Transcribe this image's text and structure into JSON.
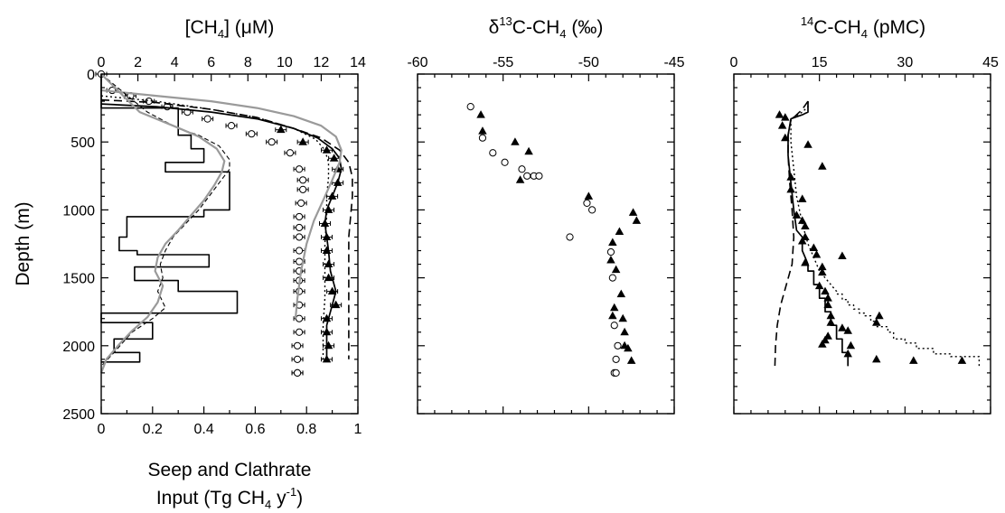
{
  "chart_data": [
    {
      "type": "line",
      "title_parts": {
        "pre": "[CH",
        "sub": "4",
        "post": "] (μM)"
      },
      "ylabel": "Depth (m)",
      "ylim": [
        0,
        2500
      ],
      "yticks": [
        "0",
        "500",
        "1000",
        "1500",
        "2000",
        "2500"
      ],
      "x_top": {
        "range": [
          0,
          14
        ],
        "ticks": [
          "0",
          "2",
          "4",
          "6",
          "8",
          "10",
          "12",
          "14"
        ]
      },
      "x_bottom": {
        "range": [
          0,
          1
        ],
        "ticks": [
          "0",
          "0.2",
          "0.4",
          "0.6",
          "0.8",
          "1"
        ],
        "label_line1": "Seep and Clathrate",
        "label_line2": {
          "pre": "Input (Tg CH",
          "sub": "4",
          "mid": " y",
          "sup": "-1",
          "post": ")"
        }
      },
      "series": [
        {
          "style": "triangles-with-errorbars",
          "axis": "top",
          "x": [
            9.8,
            11,
            12.3,
            12.7,
            12.9,
            12.9,
            12.6,
            12.4,
            12.2,
            12.3,
            12.3,
            12.4,
            12.4,
            12.6,
            12.8,
            12.3,
            12.3,
            12.4,
            12.3
          ],
          "y": [
            410,
            500,
            560,
            620,
            700,
            800,
            900,
            1000,
            1100,
            1200,
            1300,
            1400,
            1500,
            1600,
            1700,
            1800,
            1900,
            2000,
            2100
          ]
        },
        {
          "style": "circles-with-errorbars",
          "axis": "top",
          "x": [
            0,
            0.6,
            1.6,
            2.6,
            3.6,
            4.7,
            5.8,
            7.1,
            8.2,
            9.3,
            10.3,
            10.8,
            11,
            11,
            10.9,
            10.8,
            10.8,
            10.8,
            10.8,
            10.8,
            10.8,
            10.8,
            10.8,
            10.8,
            10.8,
            10.8,
            10.7,
            10.7,
            10.7,
            10.7
          ],
          "y": [
            0,
            120,
            160,
            200,
            240,
            280,
            330,
            380,
            440,
            500,
            580,
            700,
            780,
            850,
            950,
            1050,
            1130,
            1200,
            1300,
            1380,
            1450,
            1520,
            1600,
            1700,
            1800,
            1900,
            2000,
            2100,
            2200,
            2200
          ]
        },
        {
          "style": "solid-black",
          "axis": "top",
          "x": [
            0,
            3,
            6,
            8.5,
            10.5,
            11.8,
            12.6,
            13,
            13.1,
            12.9,
            12.6,
            12.3,
            12.2,
            12.3,
            12.4,
            12.5,
            12.8,
            12.5,
            12.3,
            12.3,
            12.3
          ],
          "y": [
            220,
            240,
            280,
            330,
            400,
            470,
            550,
            620,
            700,
            800,
            900,
            1000,
            1100,
            1200,
            1300,
            1450,
            1600,
            1750,
            1850,
            1950,
            2100
          ]
        },
        {
          "style": "dashed-black",
          "axis": "top",
          "x": [
            0,
            3,
            6,
            8.5,
            10.5,
            12,
            13,
            13.5,
            13.7,
            13.7,
            13.6,
            13.5,
            13.5,
            13.5,
            13.5,
            13.5,
            13.5
          ],
          "y": [
            190,
            210,
            260,
            320,
            400,
            470,
            560,
            650,
            760,
            900,
            1050,
            1200,
            1400,
            1600,
            1800,
            2000,
            2100
          ]
        },
        {
          "style": "dotted-black",
          "axis": "top",
          "x": [
            0,
            3,
            6,
            8.5,
            10.5,
            11.7,
            12.2,
            12.4,
            12.4,
            12.3,
            12.3,
            12.2,
            12.2,
            12.2,
            12.1,
            12.1
          ],
          "y": [
            160,
            200,
            260,
            320,
            400,
            480,
            560,
            650,
            760,
            900,
            1050,
            1250,
            1450,
            1650,
            1850,
            2100
          ]
        },
        {
          "style": "gray-solid",
          "axis": "top",
          "x": [
            0,
            3,
            6,
            8.5,
            10.5,
            12,
            12.8,
            13.1,
            13,
            12.6,
            12.1,
            11.6,
            11.2,
            10.9,
            10.7,
            10.6
          ],
          "y": [
            120,
            160,
            200,
            250,
            310,
            380,
            460,
            560,
            650,
            780,
            930,
            1080,
            1250,
            1450,
            1650,
            1800
          ]
        },
        {
          "style": "histogram",
          "axis": "bottom",
          "x": [
            0,
            0,
            0.3,
            0.3,
            0.35,
            0.35,
            0.4,
            0.4,
            0.25,
            0.25,
            0.5,
            0.5,
            0.4,
            0.4,
            0.1,
            0.1,
            0.07,
            0.07,
            0.14,
            0.14,
            0.42,
            0.42,
            0.13,
            0.13,
            0.3,
            0.3,
            0.53,
            0.53,
            0,
            0,
            0.2,
            0.2,
            0.05,
            0.05,
            0.15,
            0.15,
            0
          ],
          "y": [
            0,
            250,
            250,
            450,
            450,
            550,
            550,
            650,
            650,
            720,
            720,
            1000,
            1000,
            1050,
            1050,
            1200,
            1200,
            1300,
            1300,
            1330,
            1330,
            1420,
            1420,
            1520,
            1520,
            1600,
            1600,
            1760,
            1760,
            1830,
            1830,
            1950,
            1950,
            2050,
            2050,
            2120,
            2120
          ]
        },
        {
          "style": "dashed-thin",
          "axis": "bottom",
          "x": [
            0,
            0.18,
            0.3,
            0.38,
            0.46,
            0.5,
            0.5,
            0.42,
            0.38,
            0.33,
            0.28,
            0.25,
            0.23,
            0.24,
            0.22,
            0.25,
            0.2,
            0.12,
            0.05,
            0
          ],
          "y": [
            0,
            280,
            400,
            450,
            530,
            630,
            700,
            900,
            1000,
            1100,
            1200,
            1300,
            1400,
            1500,
            1600,
            1720,
            1800,
            1900,
            2050,
            2150
          ]
        },
        {
          "style": "gray-wiggly",
          "axis": "bottom",
          "x": [
            0,
            0.15,
            0.28,
            0.38,
            0.45,
            0.48,
            0.47,
            0.44,
            0.4,
            0.35,
            0.3,
            0.25,
            0.22,
            0.21,
            0.24,
            0.22,
            0.18,
            0.12,
            0.07,
            0.02,
            0
          ],
          "y": [
            0,
            280,
            380,
            460,
            550,
            640,
            720,
            820,
            930,
            1040,
            1150,
            1250,
            1350,
            1450,
            1560,
            1680,
            1790,
            1890,
            1990,
            2100,
            2200
          ]
        }
      ]
    },
    {
      "type": "scatter",
      "title_parts": {
        "pre": "δ",
        "sup": "13",
        "mid": "C-CH",
        "sub": "4",
        "post": " (‰)"
      },
      "ylim": [
        0,
        2500
      ],
      "x_top": {
        "range": [
          -60,
          -45
        ],
        "ticks": [
          "-60",
          "-55",
          "-50",
          "-45"
        ]
      },
      "series": [
        {
          "marker": "triangle",
          "x": [
            -56.3,
            -56.2,
            -54.3,
            -53.5,
            -54,
            -50,
            -47.4,
            -47.2,
            -48.2,
            -48.6,
            -48.7,
            -48.4,
            -48.1,
            -48.5,
            -48.6,
            -48,
            -47.9,
            -47.9,
            -47.7,
            -47.5
          ],
          "y": [
            300,
            420,
            500,
            570,
            780,
            900,
            1020,
            1080,
            1160,
            1240,
            1370,
            1440,
            1620,
            1720,
            1780,
            1800,
            1900,
            2000,
            2020,
            2110
          ]
        },
        {
          "marker": "circle",
          "x": [
            -56.9,
            -56.2,
            -55.6,
            -54.9,
            -53.9,
            -53.6,
            -53.2,
            -52.9,
            -50.1,
            -49.8,
            -51.1,
            -48.7,
            -48.6,
            -48.5,
            -48.3,
            -48.4,
            -48.5,
            -48.4
          ],
          "y": [
            240,
            470,
            580,
            650,
            700,
            750,
            750,
            750,
            950,
            1000,
            1200,
            1310,
            1500,
            1850,
            2000,
            2100,
            2200,
            2200
          ]
        }
      ]
    },
    {
      "type": "line",
      "title_parts": {
        "pre": "",
        "sup": "14",
        "mid": "C-CH",
        "sub": "4",
        "post": " (pMC)"
      },
      "ylim": [
        0,
        2500
      ],
      "x_top": {
        "range": [
          0,
          45
        ],
        "ticks": [
          "0",
          "15",
          "30",
          "45"
        ]
      },
      "series": [
        {
          "style": "triangles",
          "marker": "triangle",
          "x": [
            8,
            9,
            8.5,
            9,
            13,
            15.5,
            10,
            10,
            12,
            11,
            12,
            12.5,
            12.5,
            12,
            14,
            14.5,
            19,
            12.5,
            15.5,
            15.5,
            15,
            16,
            16.5,
            16.5,
            17,
            25.5,
            25,
            17,
            19,
            20,
            16.5,
            16,
            15.5,
            20.5,
            20,
            25,
            31.5,
            40
          ],
          "y": [
            300,
            320,
            380,
            470,
            520,
            680,
            760,
            850,
            920,
            1040,
            1080,
            1120,
            1200,
            1230,
            1280,
            1330,
            1340,
            1390,
            1420,
            1460,
            1560,
            1600,
            1650,
            1700,
            1780,
            1780,
            1830,
            1830,
            1870,
            1890,
            1930,
            1960,
            1990,
            2000,
            2060,
            2100,
            2110,
            2110
          ]
        },
        {
          "style": "solid-black",
          "x": [
            13,
            13,
            13,
            12,
            10,
            9.5,
            9.5,
            10,
            10.5,
            11,
            12,
            12,
            12.5,
            13,
            13,
            14,
            14,
            15,
            15,
            16,
            16,
            17,
            17,
            18,
            18,
            19,
            19,
            20,
            20,
            20
          ],
          "y": [
            200,
            240,
            280,
            300,
            330,
            450,
            600,
            800,
            1000,
            1150,
            1200,
            1300,
            1350,
            1400,
            1450,
            1450,
            1550,
            1550,
            1650,
            1650,
            1750,
            1750,
            1850,
            1850,
            1950,
            1950,
            2050,
            2050,
            2150,
            2150
          ]
        },
        {
          "style": "dotted-black",
          "x": [
            13,
            13,
            12,
            10,
            10,
            10.5,
            11,
            12,
            13,
            14,
            15,
            16,
            17,
            18,
            18,
            19,
            19,
            20,
            20,
            21,
            21,
            22,
            22,
            23,
            23,
            24,
            24,
            25,
            25,
            27,
            27,
            28,
            28,
            30,
            30,
            32,
            32,
            35,
            35,
            38,
            38,
            43,
            43
          ],
          "y": [
            200,
            240,
            280,
            330,
            500,
            700,
            900,
            1100,
            1250,
            1350,
            1450,
            1500,
            1550,
            1600,
            1620,
            1620,
            1660,
            1660,
            1700,
            1700,
            1730,
            1730,
            1760,
            1760,
            1780,
            1780,
            1820,
            1820,
            1860,
            1860,
            1900,
            1900,
            1950,
            1950,
            1980,
            1980,
            2020,
            2020,
            2060,
            2060,
            2080,
            2080,
            2150
          ]
        },
        {
          "style": "dashed-black",
          "x": [
            13,
            12,
            11,
            10,
            9.5,
            9.5,
            9.8,
            10.2,
            10.5,
            10.2,
            9.2,
            8.2,
            7.6,
            7.3,
            7.2
          ],
          "y": [
            200,
            260,
            300,
            340,
            450,
            600,
            800,
            1000,
            1200,
            1400,
            1550,
            1700,
            1850,
            2000,
            2150
          ]
        }
      ]
    }
  ]
}
